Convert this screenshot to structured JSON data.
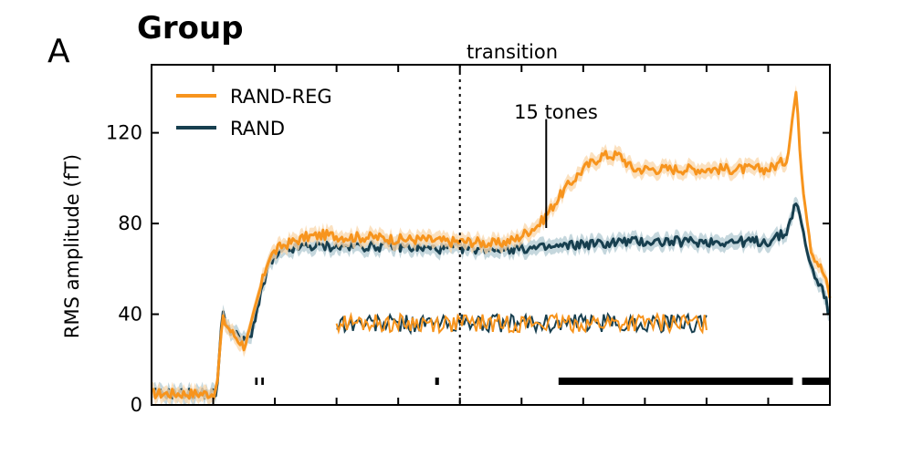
{
  "panel_letter": "A",
  "title": "Group",
  "chart_data": {
    "type": "line",
    "title": "Group",
    "xlabel": "",
    "ylabel": "RMS amplitude (fT)",
    "ylim": [
      0,
      150
    ],
    "xlim": [
      0,
      11
    ],
    "yticks": [
      0,
      40,
      80,
      120
    ],
    "ytick_labels": [
      "0",
      "40",
      "80",
      "120"
    ],
    "xticks": [
      1,
      2,
      3,
      4,
      5,
      6,
      7,
      8,
      9,
      10
    ],
    "grid": false,
    "legend_position": "top-left",
    "series": [
      {
        "name": "RAND-REG",
        "color": "#f7941d",
        "shade_color": "#fad9b0",
        "x": [
          0,
          0.5,
          0.9,
          1.05,
          1.15,
          1.3,
          1.5,
          1.6,
          1.75,
          1.9,
          2.1,
          2.3,
          2.5,
          2.8,
          3.2,
          3.6,
          4.0,
          4.4,
          4.8,
          5.2,
          5.6,
          5.9,
          6.3,
          6.7,
          7.0,
          7.3,
          7.6,
          7.8,
          8.2,
          8.7,
          9.0,
          9.4,
          10.0,
          10.3,
          10.45,
          10.55,
          10.7,
          10.9,
          11.0
        ],
        "values": [
          5,
          5,
          5,
          5,
          38,
          32,
          26,
          33,
          50,
          65,
          70,
          72,
          74,
          75,
          74,
          74,
          73,
          73,
          72,
          72,
          71,
          73,
          80,
          95,
          104,
          110,
          110,
          104,
          104,
          104,
          104,
          104,
          104,
          108,
          138,
          100,
          68,
          58,
          48
        ]
      },
      {
        "name": "RAND",
        "color": "#173f4f",
        "shade_color": "#b7cdd4",
        "x": [
          0,
          0.5,
          0.9,
          1.05,
          1.15,
          1.3,
          1.5,
          1.6,
          1.75,
          1.9,
          2.1,
          2.3,
          2.5,
          2.8,
          3.2,
          3.6,
          4.0,
          4.4,
          4.8,
          5.2,
          5.6,
          5.9,
          6.3,
          6.7,
          7.0,
          7.3,
          7.6,
          7.8,
          8.2,
          8.7,
          9.0,
          9.4,
          10.0,
          10.3,
          10.45,
          10.55,
          10.7,
          10.9,
          11.0
        ],
        "values": [
          5,
          5,
          5,
          5,
          40,
          32,
          28,
          30,
          46,
          62,
          67,
          69,
          70,
          70,
          70,
          70,
          70,
          69,
          69,
          69,
          69,
          69,
          69,
          70,
          71,
          71,
          72,
          72,
          72,
          72,
          72,
          72,
          72,
          76,
          90,
          78,
          60,
          50,
          38
        ]
      }
    ],
    "inset_series": {
      "x_range": [
        3,
        9
      ],
      "y_center": 36,
      "amplitude": 4,
      "series_names": [
        "RAND-REG",
        "RAND"
      ]
    },
    "annotations": [
      {
        "text": "transition",
        "x": 5.0,
        "style": "dotted-vertical-line"
      },
      {
        "text": "15 tones",
        "x": 6.4,
        "y_from": 80,
        "y_to": 110,
        "style": "vertical-line"
      }
    ],
    "significance_markers": [
      {
        "from": 1.68,
        "to": 1.72
      },
      {
        "from": 1.78,
        "to": 1.82
      },
      {
        "from": 4.6,
        "to": 4.66
      },
      {
        "from": 6.6,
        "to": 10.4
      },
      {
        "from": 10.55,
        "to": 11.0
      }
    ]
  },
  "colors": {
    "rand_reg": "#f7941d",
    "rand": "#173f4f",
    "axis": "#000000"
  }
}
